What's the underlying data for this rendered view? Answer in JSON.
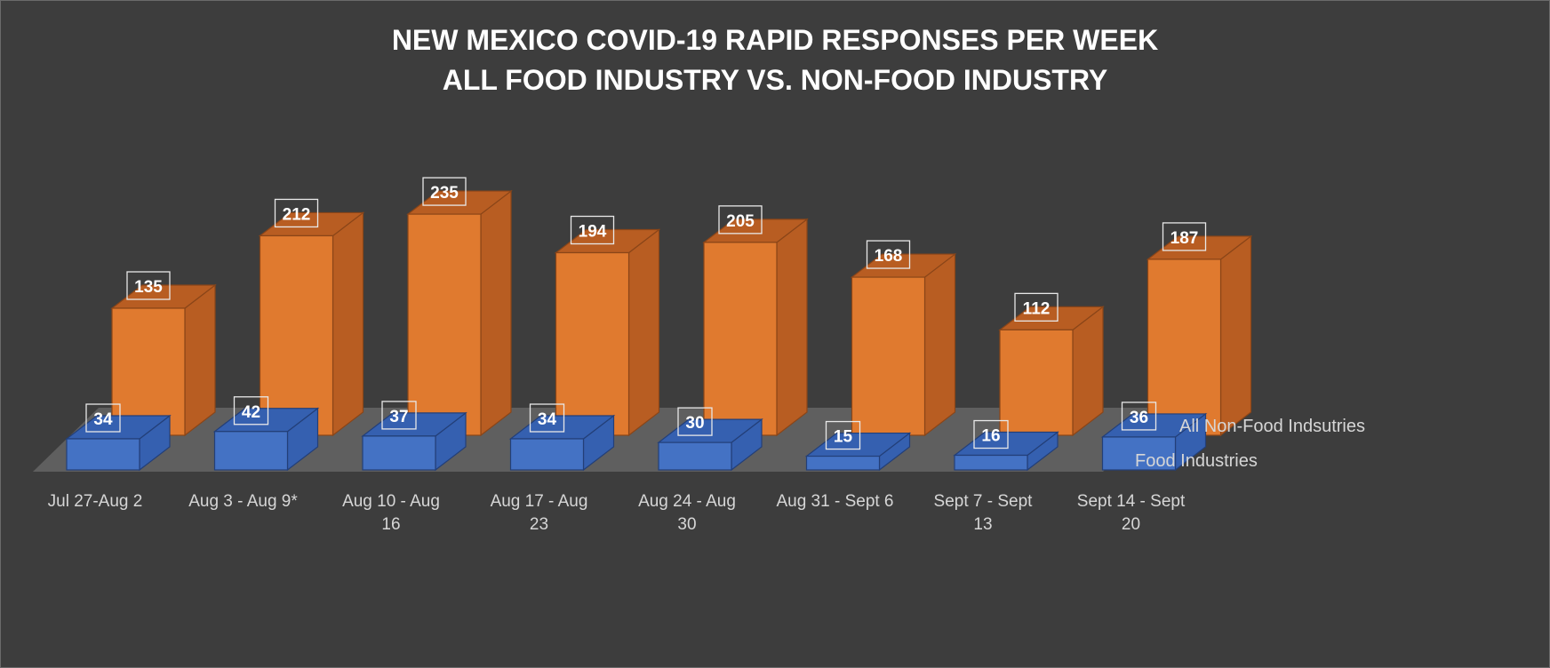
{
  "chart_data": {
    "type": "bar",
    "title_lines": [
      "NEW MEXICO COVID-19 RAPID RESPONSES PER WEEK",
      "ALL FOOD INDUSTRY VS. NON-FOOD INDUSTRY"
    ],
    "categories": [
      [
        "Jul 27-Aug 2"
      ],
      [
        "Aug 3 - Aug 9*"
      ],
      [
        "Aug 10 - Aug",
        "16"
      ],
      [
        "Aug 17 - Aug",
        "23"
      ],
      [
        "Aug 24 - Aug",
        "30"
      ],
      [
        "Aug 31 - Sept 6"
      ],
      [
        "Sept 7 - Sept",
        "13"
      ],
      [
        "Sept 14 - Sept",
        "20"
      ]
    ],
    "series": [
      {
        "name": "Food Industries",
        "values": [
          34,
          42,
          37,
          34,
          30,
          15,
          16,
          36
        ],
        "color": "#4472c4"
      },
      {
        "name": "All Non-Food Indsutries",
        "values": [
          135,
          212,
          235,
          194,
          205,
          168,
          112,
          187
        ],
        "color": "#ed7d31"
      }
    ],
    "ylim": [
      0,
      250
    ],
    "grid": false,
    "data_labels": true,
    "style": "3d-column"
  }
}
